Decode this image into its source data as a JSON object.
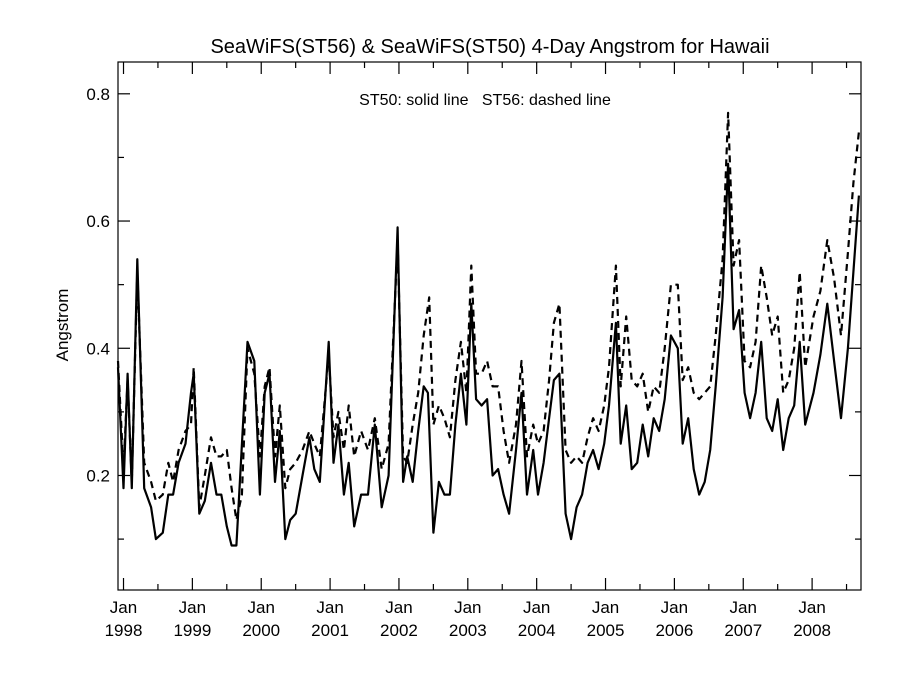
{
  "chart_data": {
    "type": "line",
    "title": "SeaWiFS(ST56) & SeaWiFS(ST50) 4-Day Angstrom for Hawaii",
    "ylabel": "Angstrom",
    "xlabel": "",
    "annotation": "ST50: solid line   ST56: dashed line",
    "xlim": [
      1997.92,
      2008.71
    ],
    "ylim": [
      0.02,
      0.85
    ],
    "yticks": [
      {
        "value": 0.2,
        "label": "0.2"
      },
      {
        "value": 0.4,
        "label": "0.4"
      },
      {
        "value": 0.6,
        "label": "0.6"
      },
      {
        "value": 0.8,
        "label": "0.8"
      }
    ],
    "xticks": [
      {
        "value": 1998,
        "line1": "Jan",
        "line2": "1998"
      },
      {
        "value": 1999,
        "line1": "Jan",
        "line2": "1999"
      },
      {
        "value": 2000,
        "line1": "Jan",
        "line2": "2000"
      },
      {
        "value": 2001,
        "line1": "Jan",
        "line2": "2001"
      },
      {
        "value": 2002,
        "line1": "Jan",
        "line2": "2002"
      },
      {
        "value": 2003,
        "line1": "Jan",
        "line2": "2003"
      },
      {
        "value": 2004,
        "line1": "Jan",
        "line2": "2004"
      },
      {
        "value": 2005,
        "line1": "Jan",
        "line2": "2005"
      },
      {
        "value": 2006,
        "line1": "Jan",
        "line2": "2006"
      },
      {
        "value": 2007,
        "line1": "Jan",
        "line2": "2007"
      },
      {
        "value": 2008,
        "line1": "Jan",
        "line2": "2008"
      }
    ],
    "series": [
      {
        "name": "ST50",
        "style": "solid",
        "points": [
          [
            1997.92,
            0.37
          ],
          [
            1998.0,
            0.18
          ],
          [
            1998.06,
            0.36
          ],
          [
            1998.12,
            0.18
          ],
          [
            1998.2,
            0.54
          ],
          [
            1998.3,
            0.18
          ],
          [
            1998.4,
            0.15
          ],
          [
            1998.47,
            0.1
          ],
          [
            1998.57,
            0.11
          ],
          [
            1998.65,
            0.17
          ],
          [
            1998.72,
            0.17
          ],
          [
            1998.8,
            0.22
          ],
          [
            1998.9,
            0.25
          ],
          [
            1998.98,
            0.33
          ],
          [
            1999.02,
            0.36
          ],
          [
            1999.1,
            0.14
          ],
          [
            1999.18,
            0.16
          ],
          [
            1999.27,
            0.22
          ],
          [
            1999.35,
            0.17
          ],
          [
            1999.42,
            0.17
          ],
          [
            1999.5,
            0.12
          ],
          [
            1999.57,
            0.09
          ],
          [
            1999.64,
            0.09
          ],
          [
            1999.8,
            0.41
          ],
          [
            1999.9,
            0.38
          ],
          [
            1999.98,
            0.17
          ],
          [
            2000.05,
            0.33
          ],
          [
            2000.12,
            0.36
          ],
          [
            2000.2,
            0.19
          ],
          [
            2000.27,
            0.27
          ],
          [
            2000.35,
            0.1
          ],
          [
            2000.42,
            0.13
          ],
          [
            2000.5,
            0.14
          ],
          [
            2000.6,
            0.2
          ],
          [
            2000.7,
            0.26
          ],
          [
            2000.77,
            0.21
          ],
          [
            2000.85,
            0.19
          ],
          [
            2000.98,
            0.41
          ],
          [
            2001.05,
            0.22
          ],
          [
            2001.12,
            0.28
          ],
          [
            2001.2,
            0.17
          ],
          [
            2001.27,
            0.22
          ],
          [
            2001.35,
            0.12
          ],
          [
            2001.45,
            0.17
          ],
          [
            2001.55,
            0.17
          ],
          [
            2001.65,
            0.28
          ],
          [
            2001.75,
            0.15
          ],
          [
            2001.85,
            0.2
          ],
          [
            2001.98,
            0.59
          ],
          [
            2002.06,
            0.19
          ],
          [
            2002.12,
            0.23
          ],
          [
            2002.2,
            0.19
          ],
          [
            2002.28,
            0.27
          ],
          [
            2002.36,
            0.34
          ],
          [
            2002.42,
            0.33
          ],
          [
            2002.5,
            0.11
          ],
          [
            2002.58,
            0.19
          ],
          [
            2002.66,
            0.17
          ],
          [
            2002.74,
            0.17
          ],
          [
            2002.82,
            0.28
          ],
          [
            2002.9,
            0.36
          ],
          [
            2002.98,
            0.28
          ],
          [
            2003.05,
            0.47
          ],
          [
            2003.12,
            0.32
          ],
          [
            2003.2,
            0.31
          ],
          [
            2003.28,
            0.32
          ],
          [
            2003.36,
            0.2
          ],
          [
            2003.44,
            0.21
          ],
          [
            2003.52,
            0.17
          ],
          [
            2003.6,
            0.14
          ],
          [
            2003.7,
            0.24
          ],
          [
            2003.78,
            0.33
          ],
          [
            2003.86,
            0.17
          ],
          [
            2003.95,
            0.24
          ],
          [
            2004.02,
            0.17
          ],
          [
            2004.1,
            0.22
          ],
          [
            2004.18,
            0.29
          ],
          [
            2004.25,
            0.35
          ],
          [
            2004.33,
            0.36
          ],
          [
            2004.42,
            0.14
          ],
          [
            2004.5,
            0.1
          ],
          [
            2004.58,
            0.15
          ],
          [
            2004.66,
            0.17
          ],
          [
            2004.74,
            0.22
          ],
          [
            2004.82,
            0.24
          ],
          [
            2004.9,
            0.21
          ],
          [
            2004.98,
            0.25
          ],
          [
            2005.05,
            0.31
          ],
          [
            2005.15,
            0.44
          ],
          [
            2005.22,
            0.25
          ],
          [
            2005.3,
            0.31
          ],
          [
            2005.38,
            0.21
          ],
          [
            2005.46,
            0.22
          ],
          [
            2005.54,
            0.28
          ],
          [
            2005.62,
            0.23
          ],
          [
            2005.7,
            0.29
          ],
          [
            2005.78,
            0.27
          ],
          [
            2005.86,
            0.32
          ],
          [
            2005.95,
            0.42
          ],
          [
            2006.05,
            0.4
          ],
          [
            2006.12,
            0.25
          ],
          [
            2006.2,
            0.29
          ],
          [
            2006.28,
            0.21
          ],
          [
            2006.36,
            0.17
          ],
          [
            2006.44,
            0.19
          ],
          [
            2006.52,
            0.24
          ],
          [
            2006.6,
            0.34
          ],
          [
            2006.7,
            0.48
          ],
          [
            2006.78,
            0.69
          ],
          [
            2006.86,
            0.43
          ],
          [
            2006.94,
            0.46
          ],
          [
            2007.02,
            0.33
          ],
          [
            2007.1,
            0.29
          ],
          [
            2007.18,
            0.33
          ],
          [
            2007.26,
            0.41
          ],
          [
            2007.34,
            0.29
          ],
          [
            2007.42,
            0.27
          ],
          [
            2007.5,
            0.32
          ],
          [
            2007.58,
            0.24
          ],
          [
            2007.66,
            0.29
          ],
          [
            2007.74,
            0.31
          ],
          [
            2007.82,
            0.41
          ],
          [
            2007.9,
            0.28
          ],
          [
            2008.02,
            0.33
          ],
          [
            2008.12,
            0.39
          ],
          [
            2008.22,
            0.47
          ],
          [
            2008.32,
            0.38
          ],
          [
            2008.42,
            0.29
          ],
          [
            2008.52,
            0.4
          ],
          [
            2008.6,
            0.52
          ],
          [
            2008.68,
            0.64
          ]
        ]
      },
      {
        "name": "ST56",
        "style": "dashed",
        "points": [
          [
            1997.92,
            0.38
          ],
          [
            1998.0,
            0.21
          ],
          [
            1998.06,
            0.35
          ],
          [
            1998.12,
            0.19
          ],
          [
            1998.2,
            0.52
          ],
          [
            1998.3,
            0.22
          ],
          [
            1998.4,
            0.19
          ],
          [
            1998.47,
            0.16
          ],
          [
            1998.57,
            0.17
          ],
          [
            1998.65,
            0.22
          ],
          [
            1998.72,
            0.19
          ],
          [
            1998.8,
            0.24
          ],
          [
            1998.9,
            0.27
          ],
          [
            1998.98,
            0.28
          ],
          [
            1999.02,
            0.37
          ],
          [
            1999.1,
            0.15
          ],
          [
            1999.18,
            0.2
          ],
          [
            1999.27,
            0.26
          ],
          [
            1999.35,
            0.23
          ],
          [
            1999.42,
            0.23
          ],
          [
            1999.5,
            0.24
          ],
          [
            1999.57,
            0.18
          ],
          [
            1999.64,
            0.13
          ],
          [
            1999.72,
            0.17
          ],
          [
            1999.8,
            0.4
          ],
          [
            1999.9,
            0.36
          ],
          [
            1999.98,
            0.23
          ],
          [
            2000.05,
            0.34
          ],
          [
            2000.12,
            0.37
          ],
          [
            2000.2,
            0.23
          ],
          [
            2000.27,
            0.31
          ],
          [
            2000.35,
            0.18
          ],
          [
            2000.42,
            0.21
          ],
          [
            2000.5,
            0.22
          ],
          [
            2000.6,
            0.24
          ],
          [
            2000.7,
            0.27
          ],
          [
            2000.77,
            0.25
          ],
          [
            2000.85,
            0.23
          ],
          [
            2000.98,
            0.39
          ],
          [
            2001.05,
            0.26
          ],
          [
            2001.12,
            0.3
          ],
          [
            2001.2,
            0.24
          ],
          [
            2001.27,
            0.31
          ],
          [
            2001.35,
            0.23
          ],
          [
            2001.45,
            0.27
          ],
          [
            2001.55,
            0.24
          ],
          [
            2001.65,
            0.29
          ],
          [
            2001.75,
            0.21
          ],
          [
            2001.85,
            0.25
          ],
          [
            2001.98,
            0.57
          ],
          [
            2002.06,
            0.23
          ],
          [
            2002.12,
            0.22
          ],
          [
            2002.2,
            0.28
          ],
          [
            2002.28,
            0.33
          ],
          [
            2002.36,
            0.42
          ],
          [
            2002.44,
            0.48
          ],
          [
            2002.5,
            0.28
          ],
          [
            2002.58,
            0.31
          ],
          [
            2002.66,
            0.29
          ],
          [
            2002.74,
            0.26
          ],
          [
            2002.82,
            0.35
          ],
          [
            2002.9,
            0.41
          ],
          [
            2002.98,
            0.33
          ],
          [
            2003.05,
            0.53
          ],
          [
            2003.12,
            0.36
          ],
          [
            2003.2,
            0.36
          ],
          [
            2003.28,
            0.38
          ],
          [
            2003.36,
            0.34
          ],
          [
            2003.44,
            0.34
          ],
          [
            2003.52,
            0.27
          ],
          [
            2003.6,
            0.22
          ],
          [
            2003.7,
            0.28
          ],
          [
            2003.78,
            0.38
          ],
          [
            2003.86,
            0.23
          ],
          [
            2003.95,
            0.28
          ],
          [
            2004.02,
            0.25
          ],
          [
            2004.1,
            0.27
          ],
          [
            2004.18,
            0.35
          ],
          [
            2004.25,
            0.44
          ],
          [
            2004.33,
            0.47
          ],
          [
            2004.42,
            0.24
          ],
          [
            2004.5,
            0.22
          ],
          [
            2004.58,
            0.23
          ],
          [
            2004.66,
            0.22
          ],
          [
            2004.74,
            0.26
          ],
          [
            2004.82,
            0.29
          ],
          [
            2004.9,
            0.27
          ],
          [
            2004.98,
            0.31
          ],
          [
            2005.05,
            0.37
          ],
          [
            2005.15,
            0.53
          ],
          [
            2005.22,
            0.34
          ],
          [
            2005.3,
            0.45
          ],
          [
            2005.38,
            0.35
          ],
          [
            2005.46,
            0.34
          ],
          [
            2005.54,
            0.36
          ],
          [
            2005.62,
            0.3
          ],
          [
            2005.7,
            0.34
          ],
          [
            2005.78,
            0.33
          ],
          [
            2005.86,
            0.4
          ],
          [
            2005.95,
            0.5
          ],
          [
            2006.05,
            0.5
          ],
          [
            2006.12,
            0.35
          ],
          [
            2006.2,
            0.37
          ],
          [
            2006.28,
            0.33
          ],
          [
            2006.36,
            0.32
          ],
          [
            2006.44,
            0.33
          ],
          [
            2006.52,
            0.34
          ],
          [
            2006.6,
            0.42
          ],
          [
            2006.7,
            0.54
          ],
          [
            2006.78,
            0.77
          ],
          [
            2006.86,
            0.53
          ],
          [
            2006.94,
            0.57
          ],
          [
            2007.02,
            0.38
          ],
          [
            2007.1,
            0.37
          ],
          [
            2007.18,
            0.41
          ],
          [
            2007.26,
            0.53
          ],
          [
            2007.34,
            0.48
          ],
          [
            2007.42,
            0.42
          ],
          [
            2007.5,
            0.45
          ],
          [
            2007.58,
            0.33
          ],
          [
            2007.66,
            0.35
          ],
          [
            2007.74,
            0.4
          ],
          [
            2007.82,
            0.52
          ],
          [
            2007.9,
            0.37
          ],
          [
            2008.02,
            0.45
          ],
          [
            2008.12,
            0.49
          ],
          [
            2008.22,
            0.57
          ],
          [
            2008.32,
            0.51
          ],
          [
            2008.42,
            0.42
          ],
          [
            2008.52,
            0.55
          ],
          [
            2008.6,
            0.66
          ],
          [
            2008.68,
            0.74
          ]
        ]
      }
    ]
  }
}
